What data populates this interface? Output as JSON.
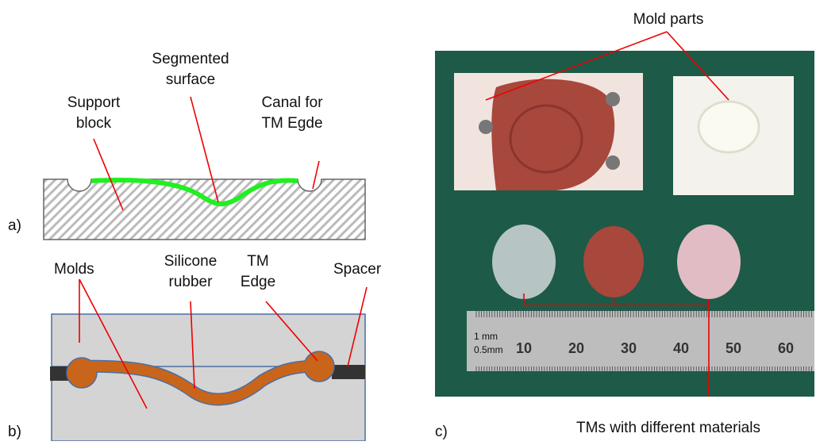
{
  "panel_a": {
    "label": "a)",
    "segmented_surface": [
      "Segmented",
      "surface"
    ],
    "support_block": [
      "Support",
      "block"
    ],
    "canal": [
      "Canal for",
      "TM Egde"
    ]
  },
  "panel_b": {
    "label": "b)",
    "molds": "Molds",
    "silicone": [
      "Silicone",
      "rubber"
    ],
    "tm_edge": [
      "TM",
      "Edge"
    ],
    "spacer": "Spacer"
  },
  "panel_c": {
    "label": "c)",
    "mold_parts": "Mold parts",
    "tms": "TMs with different materials",
    "ruler": {
      "units": [
        "1 mm",
        "0.5mm"
      ],
      "marks": [
        "10",
        "20",
        "30",
        "40",
        "50",
        "60"
      ]
    }
  }
}
